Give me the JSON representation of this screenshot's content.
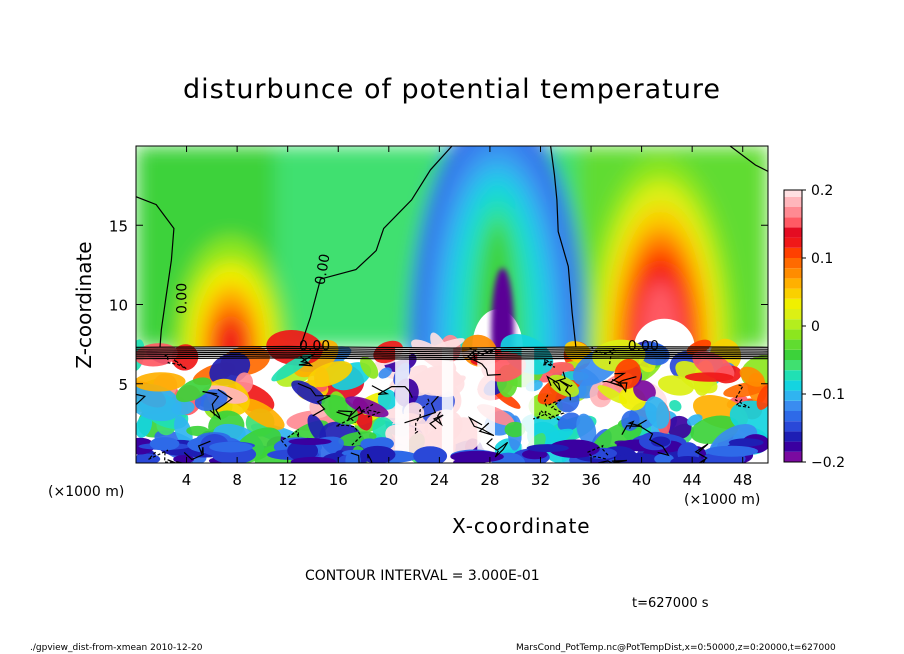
{
  "chart_data": {
    "type": "heatmap",
    "title": "disturbunce of potential temperature",
    "xlabel": "X-coordinate",
    "ylabel": "Z-coordinate",
    "x_unit": "(×1000 m)",
    "xlim": [
      0,
      50
    ],
    "ylim": [
      0,
      20
    ],
    "x_ticks": [
      4,
      8,
      12,
      16,
      20,
      24,
      28,
      32,
      36,
      40,
      44,
      48
    ],
    "y_ticks": [
      5,
      10,
      15
    ],
    "colorbar": {
      "ticks": [
        "0.2",
        "0.1",
        "0",
        "−0.1",
        "−0.2"
      ],
      "range": [
        -0.2,
        0.2
      ],
      "levels": [
        -0.2,
        -0.185,
        -0.17,
        -0.155,
        -0.14,
        -0.125,
        -0.11,
        -0.095,
        -0.08,
        -0.065,
        -0.05,
        -0.035,
        -0.02,
        -0.005,
        0.01,
        0.025,
        0.04,
        0.055,
        0.07,
        0.085,
        0.1,
        0.115,
        0.13,
        0.145,
        0.16,
        0.175,
        0.19
      ],
      "colors": [
        "#7a0aa0",
        "#3a00a0",
        "#1e1eb4",
        "#2a48d8",
        "#2e6ae8",
        "#3a8cf0",
        "#30b4f0",
        "#14d4e0",
        "#20e0b4",
        "#40e070",
        "#3cd23a",
        "#60dc30",
        "#8ce61e",
        "#b4ee1e",
        "#dcf014",
        "#f0f000",
        "#fad000",
        "#ffb000",
        "#ff8c00",
        "#ff6a00",
        "#ff4000",
        "#f01818",
        "#e40c22",
        "#ff5a64",
        "#ff8a92",
        "#ffb6bb",
        "#ffe0e2"
      ]
    },
    "contour_labels": [
      "0.00",
      "0.00",
      "0.00",
      "0.00"
    ],
    "grid": false
  },
  "annotations": {
    "contour_interval": "CONTOUR INTERVAL = 3.000E-01",
    "time": "t=627000 s"
  },
  "footer": {
    "left": "./gpview_dist-from-xmean  2010-12-20",
    "right": "MarsCond_PotTemp.nc@PotTempDist,x=0:50000,z=0:20000,t=627000"
  },
  "colors": {
    "warm_peak": "#ff0000",
    "cold_peak": "#1e1eb4",
    "background_zero": "#40e070"
  }
}
